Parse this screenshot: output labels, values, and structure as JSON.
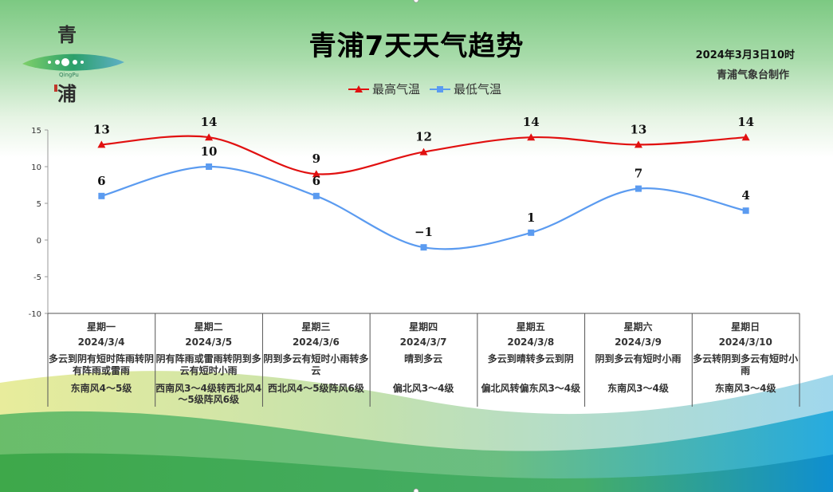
{
  "header": {
    "title": "青浦7天天气趋势",
    "issue_time": "2024年3月3日10时",
    "maker": "青浦气象台制作"
  },
  "logo": {
    "char_top": "青",
    "char_bottom": "浦",
    "text": "QingPu"
  },
  "colors": {
    "max_series": "#e11010",
    "min_series": "#5b9bf0",
    "axis": "#9a9a9a"
  },
  "chart_data": {
    "type": "line",
    "categories": [
      "星期一",
      "星期二",
      "星期三",
      "星期四",
      "星期五",
      "星期六",
      "星期日"
    ],
    "series": [
      {
        "name": "最高气温",
        "values": [
          13,
          14,
          9,
          12,
          14,
          13,
          14
        ],
        "color": "#e11010",
        "marker": "triangle"
      },
      {
        "name": "最低气温",
        "values": [
          6,
          10,
          6,
          -1,
          1,
          7,
          4
        ],
        "color": "#5b9bf0",
        "marker": "square"
      }
    ],
    "ylim": [
      -10,
      15
    ],
    "yticks": [
      "-10",
      "-5",
      "0",
      "5",
      "10",
      "15"
    ],
    "smooth": true,
    "data_labels": true,
    "legend_position": "top"
  },
  "days": [
    {
      "week": "星期一",
      "date": "2024/3/4",
      "weather": "多云到阴有短时阵雨转阴有阵雨或雷雨",
      "wind": "东南风4～5级"
    },
    {
      "week": "星期二",
      "date": "2024/3/5",
      "weather": "阴有阵雨或雷雨转阴到多云有短时小雨",
      "wind": "西南风3～4级转西北风4～5级阵风6级"
    },
    {
      "week": "星期三",
      "date": "2024/3/6",
      "weather": "阴到多云有短时小雨转多云",
      "wind": "西北风4～5级阵风6级"
    },
    {
      "week": "星期四",
      "date": "2024/3/7",
      "weather": "晴到多云",
      "wind": "偏北风3～4级"
    },
    {
      "week": "星期五",
      "date": "2024/3/8",
      "weather": "多云到晴转多云到阴",
      "wind": "偏北风转偏东风3～4级"
    },
    {
      "week": "星期六",
      "date": "2024/3/9",
      "weather": "阴到多云有短时小雨",
      "wind": "东南风3～4级"
    },
    {
      "week": "星期日",
      "date": "2024/3/10",
      "weather": "多云转阴到多云有短时小雨",
      "wind": "东南风3～4级"
    }
  ]
}
